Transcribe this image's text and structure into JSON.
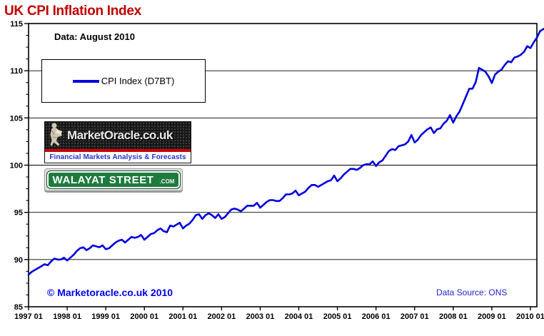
{
  "page": {
    "title": "UK CPI Inflation Index",
    "data_label": "Data: August 2010",
    "copyright": "© Marketoracle.co.uk  2010",
    "data_source": "Data Source: ONS"
  },
  "legend": {
    "series_label": "CPI Index (D7BT)"
  },
  "logos": {
    "market_oracle": {
      "name": "MarketOracle.co.uk",
      "tagline": "Financial Markets Analysis & Forecasts"
    },
    "walayat_street": {
      "name": "WALAYAT STREET",
      "suffix": ".COM"
    }
  },
  "colors": {
    "title": "#C00000",
    "line": "#0000DD",
    "copyright": "#0000EE",
    "data_source": "#2222CC",
    "oracle_stripe": "#CC0000",
    "oracle_tagline": "#2233CC",
    "walayat_green": "#1E7B3E",
    "axis": "#000000"
  },
  "chart_data": {
    "type": "line",
    "title": "UK CPI Inflation Index",
    "xlabel": "",
    "ylabel": "",
    "ylim": [
      85,
      115
    ],
    "y_tick_step": 5,
    "y_minor_tick_step": 1.25,
    "grid": "horizontal-major",
    "legend_position": "upper-left-box",
    "x_start": "1997-01",
    "x_end": "2010-08",
    "frequency": "monthly",
    "x_tick_labels": [
      "1997 01",
      "1998 01",
      "1999 01",
      "2000 01",
      "2001 01",
      "2002 01",
      "2003 01",
      "2004 01",
      "2005 01",
      "2006 01",
      "2007 01",
      "2008 01",
      "2009 01",
      "2010 01"
    ],
    "series": [
      {
        "name": "CPI Index (D7BT)",
        "values": [
          88.4,
          88.7,
          88.9,
          89.1,
          89.3,
          89.5,
          89.4,
          89.8,
          90.1,
          90.0,
          90.0,
          90.2,
          89.9,
          90.2,
          90.5,
          90.9,
          91.2,
          91.3,
          91.0,
          91.2,
          91.5,
          91.4,
          91.3,
          91.5,
          91.1,
          91.2,
          91.5,
          91.8,
          92.0,
          92.1,
          91.8,
          92.1,
          92.4,
          92.3,
          92.4,
          92.6,
          92.1,
          92.4,
          92.7,
          92.8,
          93.1,
          93.3,
          93.0,
          92.9,
          93.6,
          93.5,
          93.7,
          93.9,
          93.3,
          93.6,
          93.8,
          94.2,
          94.7,
          94.8,
          94.3,
          94.7,
          94.9,
          94.7,
          94.4,
          94.8,
          94.3,
          94.5,
          94.9,
          95.3,
          95.4,
          95.3,
          95.1,
          95.4,
          95.7,
          95.7,
          95.7,
          96.0,
          95.5,
          95.8,
          96.1,
          96.3,
          96.3,
          96.2,
          96.2,
          96.5,
          96.9,
          96.9,
          97.0,
          97.3,
          96.8,
          97.0,
          97.2,
          97.6,
          97.9,
          97.9,
          97.7,
          97.9,
          98.1,
          98.3,
          98.4,
          98.9,
          98.3,
          98.6,
          99.0,
          99.3,
          99.6,
          99.6,
          99.5,
          99.7,
          100.0,
          100.1,
          100.1,
          100.4,
          99.9,
          100.3,
          100.5,
          101.0,
          101.5,
          101.7,
          101.6,
          102.0,
          102.1,
          102.2,
          102.5,
          103.2,
          102.4,
          102.7,
          103.2,
          103.5,
          103.8,
          104.0,
          103.4,
          103.8,
          103.9,
          104.4,
          104.7,
          105.3,
          104.5,
          105.2,
          105.7,
          106.5,
          107.3,
          108.1,
          108.1,
          108.8,
          110.3,
          110.1,
          109.9,
          109.4,
          108.7,
          109.6,
          109.9,
          110.1,
          110.6,
          111.0,
          110.9,
          111.4,
          111.5,
          111.7,
          112.0,
          112.6,
          112.4,
          113.0,
          113.5,
          114.2,
          114.4,
          114.6,
          114.3,
          114.9
        ]
      }
    ]
  }
}
